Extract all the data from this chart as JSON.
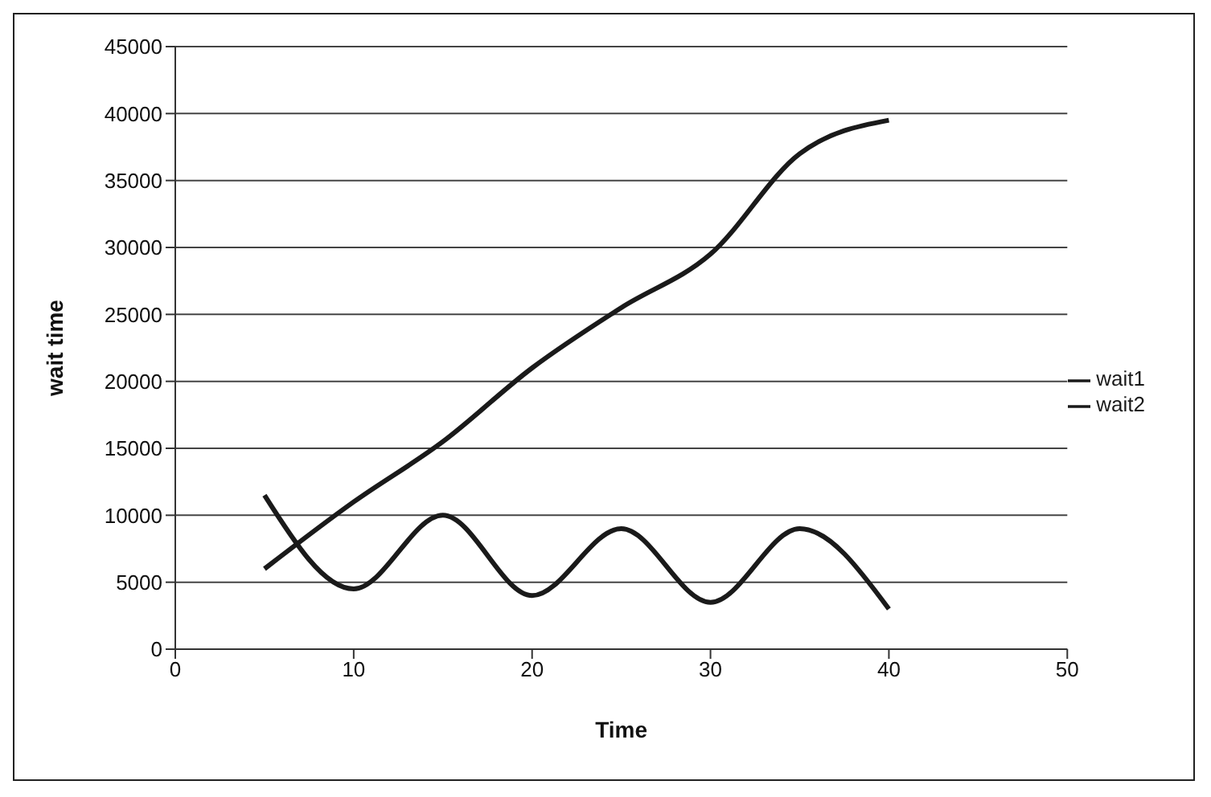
{
  "chart_data": {
    "type": "line",
    "xlabel": "Time",
    "ylabel": "wait time",
    "x": [
      5,
      10,
      15,
      20,
      25,
      30,
      35,
      40
    ],
    "series": [
      {
        "name": "wait1",
        "color": "#1a1a1a",
        "values": [
          6000,
          11000,
          15500,
          21000,
          25500,
          29500,
          37000,
          39500
        ]
      },
      {
        "name": "wait2",
        "color": "#1a1a1a",
        "values": [
          11500,
          4500,
          10000,
          4000,
          9000,
          3500,
          9000,
          3000
        ]
      }
    ],
    "xlim": [
      0,
      50
    ],
    "xticks": [
      0,
      10,
      20,
      30,
      40,
      50
    ],
    "ylim": [
      0,
      45000
    ],
    "yticks": [
      0,
      5000,
      10000,
      15000,
      20000,
      25000,
      30000,
      35000,
      40000,
      45000
    ],
    "grid": "y",
    "legend": "right",
    "marker": "none",
    "line_style": "solid"
  }
}
